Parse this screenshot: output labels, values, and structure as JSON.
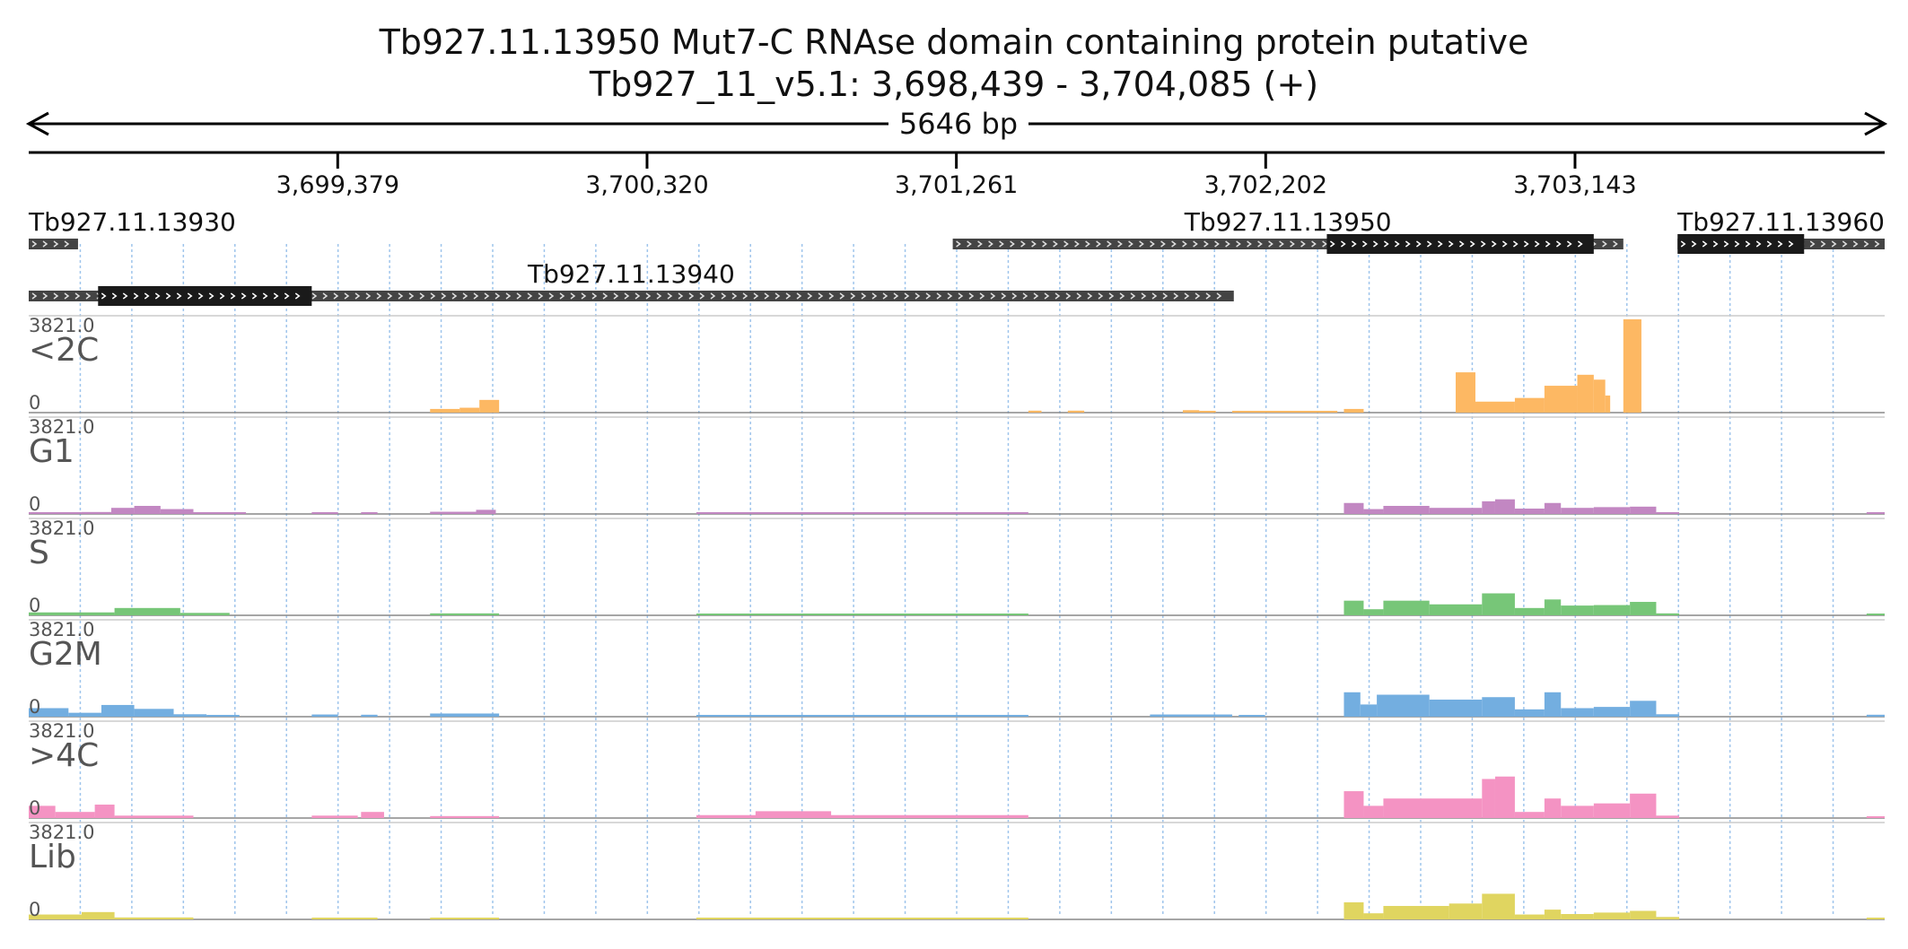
{
  "header": {
    "title_line1": "Tb927.11.13950  Mut7-C RNAse domain containing protein  putative",
    "title_line2": "Tb927_11_v5.1: 3,698,439 - 3,704,085 (+)",
    "span_label": "5646 bp"
  },
  "region": {
    "chrom": "Tb927_11_v5.1",
    "start": 3698439,
    "end": 3704085,
    "strand": "+"
  },
  "ruler": {
    "ticks": [
      {
        "pos": 3699379,
        "label": "3,699,379"
      },
      {
        "pos": 3700320,
        "label": "3,700,320"
      },
      {
        "pos": 3701261,
        "label": "3,701,261"
      },
      {
        "pos": 3702202,
        "label": "3,702,202"
      },
      {
        "pos": 3703143,
        "label": "3,703,143"
      }
    ]
  },
  "genes": [
    {
      "name": "Tb927.11.13930",
      "row": 0,
      "start": 3698439,
      "end": 3698589,
      "cds": [],
      "label_align": "start"
    },
    {
      "name": "Tb927.11.13950",
      "row": 0,
      "start": 3701250,
      "end": 3703290,
      "cds": [
        3702388,
        3703200
      ],
      "label_align": "middle"
    },
    {
      "name": "Tb927.11.13960",
      "row": 0,
      "start": 3703455,
      "end": 3704085,
      "cds": [
        3703455,
        3703840
      ],
      "label_align": "end"
    },
    {
      "name": "Tb927.11.13940",
      "row": 1,
      "start": 3698439,
      "end": 3702105,
      "cds": [
        3698650,
        3699300
      ],
      "label_align": "middle"
    }
  ],
  "chart_data": {
    "type": "area",
    "ylim": [
      0,
      3821.0
    ],
    "max_label": "3821.0",
    "min_label": "0",
    "series": [
      {
        "name": "<2C",
        "color": "#fdb863",
        "segments": [
          [
            3699660,
            3699750,
            150
          ],
          [
            3699750,
            3699810,
            200
          ],
          [
            3699810,
            3699870,
            520
          ],
          [
            3701480,
            3701520,
            80
          ],
          [
            3701600,
            3701650,
            80
          ],
          [
            3701950,
            3702000,
            100
          ],
          [
            3702000,
            3702050,
            60
          ],
          [
            3702100,
            3702420,
            60
          ],
          [
            3702440,
            3702500,
            150
          ],
          [
            3702780,
            3702840,
            1650
          ],
          [
            3702840,
            3702960,
            450
          ],
          [
            3702960,
            3703050,
            600
          ],
          [
            3703050,
            3703150,
            1100
          ],
          [
            3703150,
            3703200,
            1550
          ],
          [
            3703200,
            3703235,
            1350
          ],
          [
            3703235,
            3703250,
            700
          ],
          [
            3703290,
            3703345,
            3821
          ]
        ]
      },
      {
        "name": "G1",
        "color": "#c287c2",
        "segments": [
          [
            3698439,
            3698600,
            60
          ],
          [
            3698600,
            3698690,
            80
          ],
          [
            3698690,
            3698760,
            250
          ],
          [
            3698760,
            3698840,
            330
          ],
          [
            3698840,
            3698940,
            200
          ],
          [
            3698940,
            3699100,
            70
          ],
          [
            3699300,
            3699380,
            40
          ],
          [
            3699450,
            3699500,
            40
          ],
          [
            3699660,
            3699800,
            90
          ],
          [
            3699800,
            3699860,
            170
          ],
          [
            3700470,
            3701480,
            40
          ],
          [
            3702440,
            3702500,
            450
          ],
          [
            3702500,
            3702560,
            200
          ],
          [
            3702560,
            3702700,
            330
          ],
          [
            3702700,
            3702860,
            250
          ],
          [
            3702860,
            3702900,
            520
          ],
          [
            3702900,
            3702960,
            600
          ],
          [
            3702960,
            3703050,
            220
          ],
          [
            3703050,
            3703100,
            450
          ],
          [
            3703100,
            3703200,
            250
          ],
          [
            3703200,
            3703310,
            280
          ],
          [
            3703310,
            3703390,
            300
          ],
          [
            3703390,
            3703460,
            60
          ],
          [
            3704030,
            3704085,
            50
          ]
        ]
      },
      {
        "name": "S",
        "color": "#77c678",
        "segments": [
          [
            3698439,
            3698700,
            120
          ],
          [
            3698700,
            3698900,
            300
          ],
          [
            3698900,
            3699050,
            100
          ],
          [
            3699660,
            3699870,
            80
          ],
          [
            3700470,
            3701480,
            50
          ],
          [
            3702440,
            3702500,
            600
          ],
          [
            3702500,
            3702560,
            250
          ],
          [
            3702560,
            3702700,
            600
          ],
          [
            3702700,
            3702860,
            450
          ],
          [
            3702860,
            3702960,
            900
          ],
          [
            3702960,
            3703050,
            300
          ],
          [
            3703050,
            3703100,
            650
          ],
          [
            3703100,
            3703200,
            400
          ],
          [
            3703200,
            3703310,
            420
          ],
          [
            3703310,
            3703390,
            550
          ],
          [
            3703390,
            3703460,
            80
          ],
          [
            3704030,
            3704085,
            60
          ]
        ]
      },
      {
        "name": "G2M",
        "color": "#73aee0",
        "segments": [
          [
            3698439,
            3698560,
            350
          ],
          [
            3698560,
            3698660,
            160
          ],
          [
            3698660,
            3698760,
            480
          ],
          [
            3698760,
            3698880,
            320
          ],
          [
            3698880,
            3698980,
            100
          ],
          [
            3698980,
            3699080,
            60
          ],
          [
            3699300,
            3699380,
            90
          ],
          [
            3699450,
            3699500,
            80
          ],
          [
            3699660,
            3699870,
            130
          ],
          [
            3700470,
            3701480,
            60
          ],
          [
            3701850,
            3702100,
            90
          ],
          [
            3702120,
            3702200,
            70
          ],
          [
            3702440,
            3702490,
            1000
          ],
          [
            3702490,
            3702540,
            500
          ],
          [
            3702540,
            3702700,
            900
          ],
          [
            3702700,
            3702860,
            700
          ],
          [
            3702860,
            3702960,
            800
          ],
          [
            3702960,
            3703050,
            300
          ],
          [
            3703050,
            3703100,
            1000
          ],
          [
            3703100,
            3703200,
            350
          ],
          [
            3703200,
            3703310,
            400
          ],
          [
            3703310,
            3703390,
            650
          ],
          [
            3703390,
            3703460,
            100
          ],
          [
            3704030,
            3704085,
            80
          ]
        ]
      },
      {
        "name": ">4C",
        "color": "#f493c3",
        "segments": [
          [
            3698439,
            3698520,
            500
          ],
          [
            3698520,
            3698640,
            250
          ],
          [
            3698640,
            3698700,
            550
          ],
          [
            3698700,
            3698940,
            100
          ],
          [
            3699300,
            3699440,
            100
          ],
          [
            3699450,
            3699520,
            250
          ],
          [
            3699660,
            3699870,
            80
          ],
          [
            3700470,
            3701480,
            120
          ],
          [
            3700650,
            3700880,
            280
          ],
          [
            3702440,
            3702500,
            1100
          ],
          [
            3702500,
            3702560,
            500
          ],
          [
            3702560,
            3702860,
            800
          ],
          [
            3702860,
            3702900,
            1600
          ],
          [
            3702900,
            3702960,
            1700
          ],
          [
            3702960,
            3703050,
            250
          ],
          [
            3703050,
            3703100,
            800
          ],
          [
            3703100,
            3703200,
            500
          ],
          [
            3703200,
            3703310,
            600
          ],
          [
            3703310,
            3703390,
            1000
          ],
          [
            3703390,
            3703460,
            100
          ],
          [
            3704030,
            3704085,
            60
          ]
        ]
      },
      {
        "name": "Lib",
        "color": "#e0d560",
        "segments": [
          [
            3698439,
            3698600,
            200
          ],
          [
            3698600,
            3698700,
            300
          ],
          [
            3698700,
            3698940,
            80
          ],
          [
            3699300,
            3699500,
            60
          ],
          [
            3699660,
            3699870,
            60
          ],
          [
            3700470,
            3701480,
            50
          ],
          [
            3702440,
            3702500,
            700
          ],
          [
            3702500,
            3702560,
            250
          ],
          [
            3702560,
            3702760,
            550
          ],
          [
            3702760,
            3702860,
            650
          ],
          [
            3702860,
            3702960,
            1050
          ],
          [
            3702960,
            3703050,
            200
          ],
          [
            3703050,
            3703100,
            400
          ],
          [
            3703100,
            3703200,
            220
          ],
          [
            3703200,
            3703310,
            280
          ],
          [
            3703310,
            3703390,
            350
          ],
          [
            3703390,
            3703460,
            100
          ],
          [
            3704030,
            3704085,
            50
          ]
        ]
      }
    ]
  }
}
